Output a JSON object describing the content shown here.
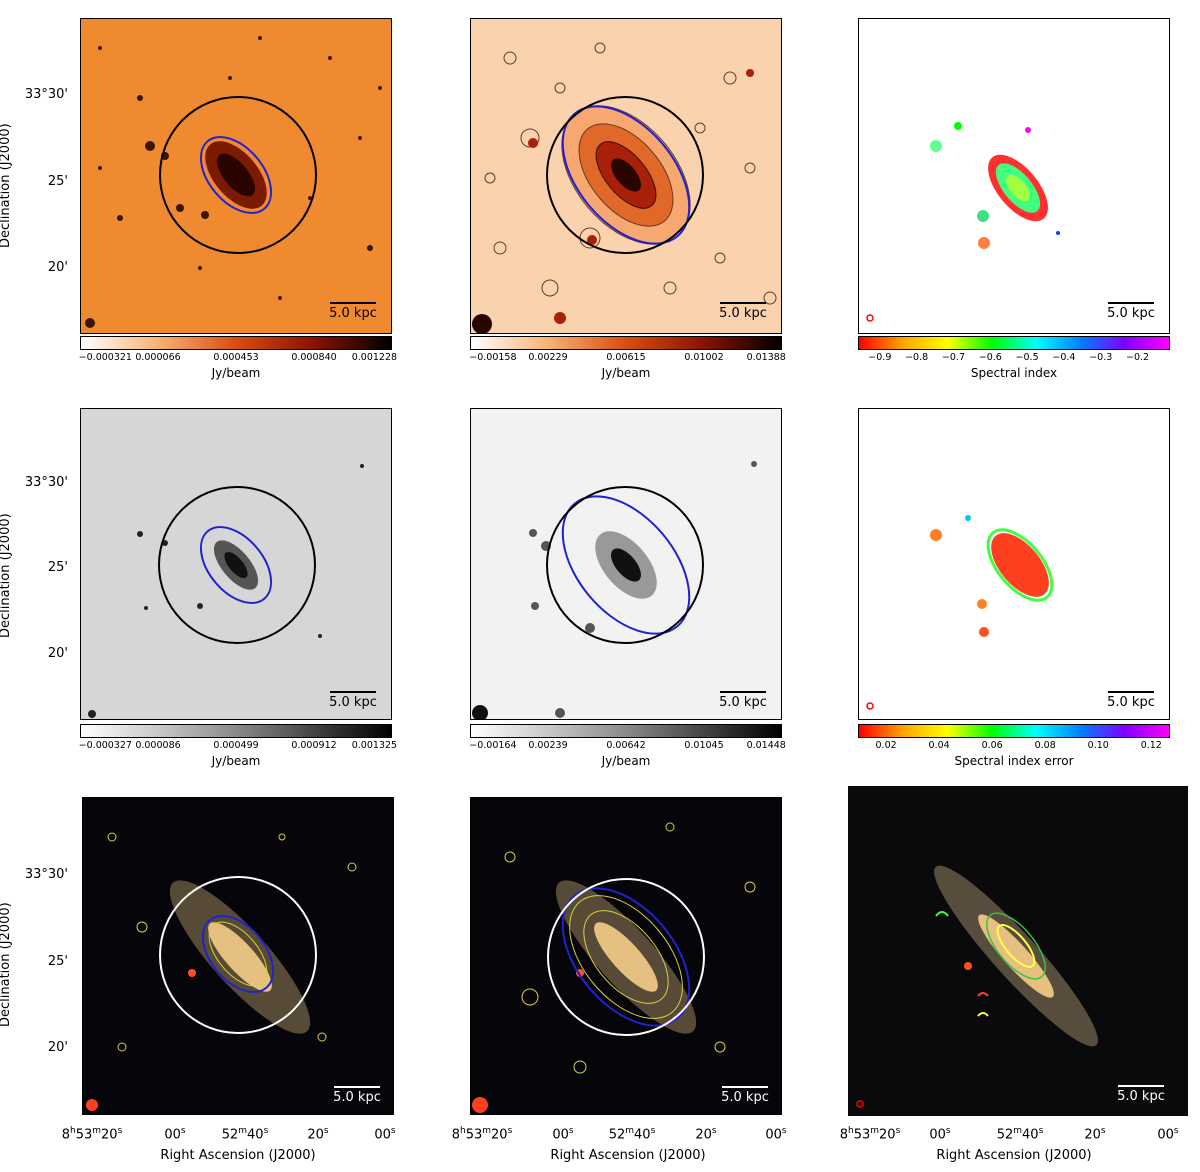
{
  "scale_label": "5.0 kpc",
  "y_axis_title": "Declination (J2000)",
  "y_ticks": [
    "33°30'",
    "25'",
    "20'"
  ],
  "x_axis_title": "Right Ascension (J2000)",
  "x_ticks": [
    "8h53m20s",
    "00s",
    "52m40s",
    "20s",
    "00s"
  ],
  "colorbars": [
    {
      "ticks": [
        "−0.000321",
        "0.000066",
        "0.000453",
        "0.000840",
        "0.001228"
      ],
      "label": "Jy/beam",
      "gradient": [
        "#ffffff",
        "#f7b274",
        "#d94d0f",
        "#8a1200",
        "#000000"
      ]
    },
    {
      "ticks": [
        "−0.00158",
        "0.00229",
        "0.00615",
        "0.01002",
        "0.01388"
      ],
      "label": "Jy/beam",
      "gradient": [
        "#ffffff",
        "#f7b274",
        "#d94d0f",
        "#8a1200",
        "#000000"
      ]
    },
    {
      "ticks": [
        "−0.9",
        "−0.8",
        "−0.7",
        "−0.6",
        "−0.5",
        "−0.4",
        "−0.3",
        "−0.2"
      ],
      "label": "Spectral index",
      "gradient": [
        "#ff0000",
        "#ffa500",
        "#ffff00",
        "#00ff00",
        "#00ffff",
        "#0080ff",
        "#8000ff",
        "#ff00ff"
      ]
    },
    {
      "ticks": [
        "−0.000327",
        "0.000086",
        "0.000499",
        "0.000912",
        "0.001325"
      ],
      "label": "Jy/beam",
      "gradient": [
        "#ffffff",
        "#c8c8c8",
        "#8a8a8a",
        "#444444",
        "#000000"
      ]
    },
    {
      "ticks": [
        "−0.00164",
        "0.00239",
        "0.00642",
        "0.01045",
        "0.01448"
      ],
      "label": "Jy/beam",
      "gradient": [
        "#ffffff",
        "#c8c8c8",
        "#8a8a8a",
        "#444444",
        "#000000"
      ]
    },
    {
      "ticks": [
        "0.02",
        "0.04",
        "0.06",
        "0.08",
        "0.10",
        "0.12"
      ],
      "label": "Spectral index error",
      "gradient": [
        "#ff0000",
        "#ffa500",
        "#ffff00",
        "#00ff00",
        "#00ffff",
        "#0080ff",
        "#8000ff",
        "#ff00ff"
      ]
    }
  ],
  "colors": {
    "disk_ellipse": "#2222cc",
    "aperture_dark": "#000000",
    "aperture_light": "#ffffff",
    "contour": "#d8d040"
  }
}
